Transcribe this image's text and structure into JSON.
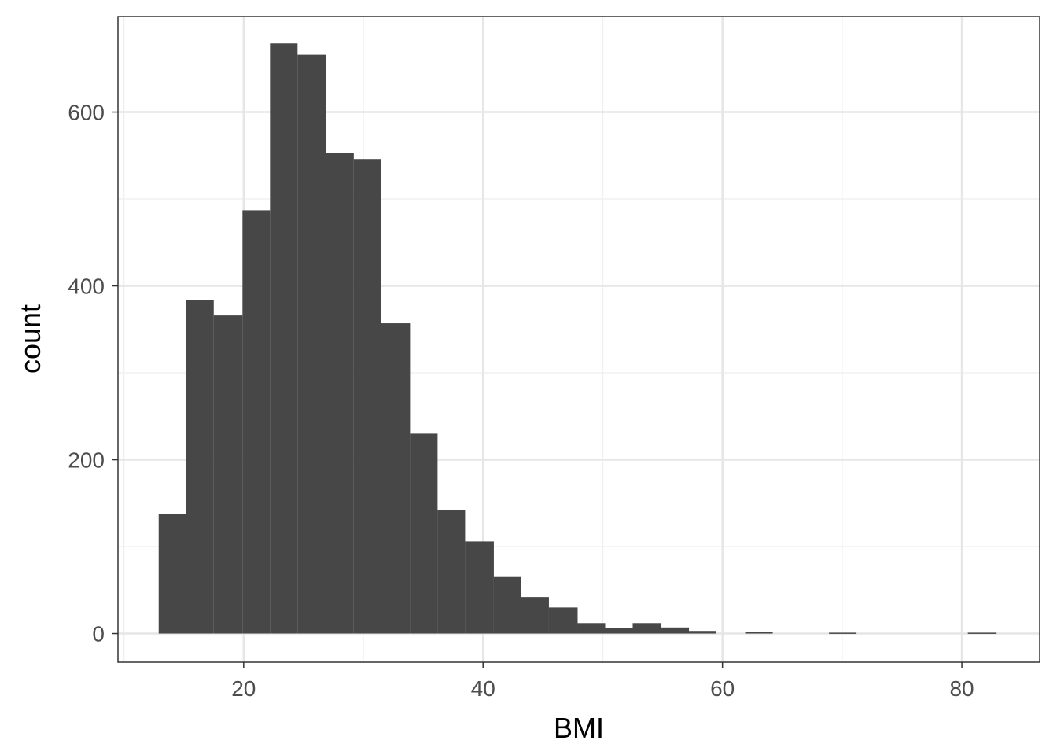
{
  "chart_data": {
    "type": "bar",
    "subtype": "histogram",
    "title": "",
    "xlabel": "BMI",
    "ylabel": "count",
    "xlim": [
      9.5,
      86.5
    ],
    "ylim": [
      -33,
      710
    ],
    "x_ticks": [
      20,
      40,
      60,
      80
    ],
    "y_ticks": [
      0,
      200,
      400,
      600
    ],
    "x_minor_ticks": [
      10,
      30,
      50,
      70
    ],
    "y_minor_ticks": [
      100,
      300,
      500
    ],
    "grid": true,
    "legend": "none",
    "bar_color": "#474747",
    "bins": [
      {
        "x0": 12.9,
        "x1": 15.2,
        "count": 138
      },
      {
        "x0": 15.2,
        "x1": 17.5,
        "count": 384
      },
      {
        "x0": 17.5,
        "x1": 19.9,
        "count": 366
      },
      {
        "x0": 19.9,
        "x1": 22.2,
        "count": 487
      },
      {
        "x0": 22.2,
        "x1": 24.5,
        "count": 679
      },
      {
        "x0": 24.5,
        "x1": 26.9,
        "count": 666
      },
      {
        "x0": 26.9,
        "x1": 29.2,
        "count": 553
      },
      {
        "x0": 29.2,
        "x1": 31.5,
        "count": 546
      },
      {
        "x0": 31.5,
        "x1": 33.9,
        "count": 357
      },
      {
        "x0": 33.9,
        "x1": 36.2,
        "count": 230
      },
      {
        "x0": 36.2,
        "x1": 38.5,
        "count": 142
      },
      {
        "x0": 38.5,
        "x1": 40.9,
        "count": 106
      },
      {
        "x0": 40.9,
        "x1": 43.2,
        "count": 65
      },
      {
        "x0": 43.2,
        "x1": 45.5,
        "count": 42
      },
      {
        "x0": 45.5,
        "x1": 47.9,
        "count": 30
      },
      {
        "x0": 47.9,
        "x1": 50.2,
        "count": 12
      },
      {
        "x0": 50.2,
        "x1": 52.5,
        "count": 6
      },
      {
        "x0": 52.5,
        "x1": 54.9,
        "count": 12
      },
      {
        "x0": 54.9,
        "x1": 57.2,
        "count": 7
      },
      {
        "x0": 57.2,
        "x1": 59.5,
        "count": 3
      },
      {
        "x0": 59.5,
        "x1": 61.9,
        "count": 0
      },
      {
        "x0": 61.9,
        "x1": 64.2,
        "count": 2
      },
      {
        "x0": 64.2,
        "x1": 66.5,
        "count": 0
      },
      {
        "x0": 66.5,
        "x1": 68.9,
        "count": 0
      },
      {
        "x0": 68.9,
        "x1": 71.2,
        "count": 1
      },
      {
        "x0": 71.2,
        "x1": 73.5,
        "count": 0
      },
      {
        "x0": 73.5,
        "x1": 75.9,
        "count": 0
      },
      {
        "x0": 75.9,
        "x1": 78.2,
        "count": 0
      },
      {
        "x0": 78.2,
        "x1": 80.5,
        "count": 0
      },
      {
        "x0": 80.5,
        "x1": 82.9,
        "count": 1
      }
    ]
  }
}
